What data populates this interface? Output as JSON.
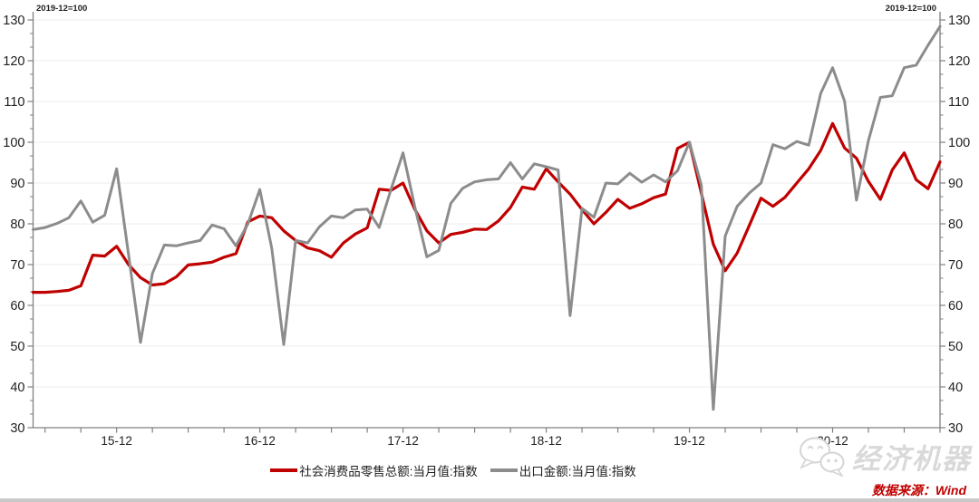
{
  "header": {
    "index_note_left": "2019-12=100",
    "index_note_right": "2019-12=100"
  },
  "chart_data": {
    "type": "line",
    "title": "",
    "xlabel": "",
    "ylabel": "",
    "ylim": [
      30,
      130
    ],
    "y_tick_step": 10,
    "grid": "horizontal",
    "legend_position": "bottom",
    "x_tick_labels": [
      "15-12",
      "16-12",
      "17-12",
      "18-12",
      "19-12",
      "20-12"
    ],
    "x": [
      "15-05",
      "15-06",
      "15-07",
      "15-08",
      "15-09",
      "15-10",
      "15-11",
      "15-12",
      "16-01",
      "16-02",
      "16-03",
      "16-04",
      "16-05",
      "16-06",
      "16-07",
      "16-08",
      "16-09",
      "16-10",
      "16-11",
      "16-12",
      "17-01",
      "17-02",
      "17-03",
      "17-04",
      "17-05",
      "17-06",
      "17-07",
      "17-08",
      "17-09",
      "17-10",
      "17-11",
      "17-12",
      "18-01",
      "18-02",
      "18-03",
      "18-04",
      "18-05",
      "18-06",
      "18-07",
      "18-08",
      "18-09",
      "18-10",
      "18-11",
      "18-12",
      "19-01",
      "19-02",
      "19-03",
      "19-04",
      "19-05",
      "19-06",
      "19-07",
      "19-08",
      "19-09",
      "19-10",
      "19-11",
      "19-12",
      "20-01",
      "20-02",
      "20-03",
      "20-04",
      "20-05",
      "20-06",
      "20-07",
      "20-08",
      "20-09",
      "20-10",
      "20-11",
      "20-12",
      "21-01",
      "21-02",
      "21-03",
      "21-04",
      "21-05",
      "21-06",
      "21-07",
      "21-08",
      "21-09"
    ],
    "series": [
      {
        "name": "社会消费品零售总额:当月值:指数",
        "color": "#c00000",
        "values": [
          63.2,
          63.2,
          63.4,
          63.7,
          64.8,
          72.3,
          72.1,
          74.5,
          70.0,
          66.8,
          65.0,
          65.3,
          67.0,
          69.9,
          70.2,
          70.6,
          71.8,
          72.7,
          80.5,
          81.9,
          81.5,
          78.3,
          75.9,
          74.1,
          73.4,
          71.8,
          75.3,
          77.5,
          79.0,
          88.5,
          88.2,
          90.0,
          83.5,
          78.3,
          75.3,
          77.4,
          77.9,
          78.7,
          78.6,
          80.7,
          84.0,
          89.0,
          88.5,
          93.5,
          90.3,
          87.3,
          83.5,
          80.0,
          82.8,
          86.0,
          83.8,
          84.9,
          86.4,
          87.3,
          98.5,
          100.0,
          87.5,
          75.0,
          68.5,
          72.8,
          79.5,
          86.3,
          84.3,
          86.5,
          90.0,
          93.5,
          98.0,
          104.6,
          98.6,
          96.1,
          90.4,
          86.0,
          93.2,
          97.4,
          90.8,
          88.6,
          95.2
        ]
      },
      {
        "name": "出口金额:当月值:指数",
        "color": "#8c8c8c",
        "values": [
          78.6,
          79.1,
          80.1,
          81.5,
          85.6,
          80.4,
          82.1,
          93.5,
          72.5,
          50.9,
          67.8,
          74.8,
          74.6,
          75.3,
          75.9,
          79.7,
          78.8,
          74.6,
          80.0,
          88.4,
          74.0,
          50.4,
          75.9,
          75.3,
          79.3,
          81.9,
          81.5,
          83.4,
          83.6,
          79.1,
          88.5,
          97.4,
          84.0,
          71.9,
          73.5,
          85.0,
          88.7,
          90.3,
          90.8,
          91.0,
          95.0,
          91.0,
          94.7,
          94.0,
          93.2,
          57.5,
          83.8,
          81.6,
          90.0,
          89.8,
          92.4,
          90.2,
          92.0,
          90.3,
          93.0,
          100.0,
          89.5,
          34.5,
          77.0,
          84.3,
          87.5,
          90.0,
          99.4,
          98.4,
          100.2,
          99.3,
          112.0,
          118.3,
          110.1,
          85.8,
          100.4,
          111.0,
          111.4,
          118.3,
          118.9,
          123.8,
          128.4
        ]
      }
    ]
  },
  "watermark": {
    "brand": "经济机器",
    "logo": "wechat-bubbles-icon"
  },
  "footer": {
    "source": "数据来源：Wind"
  }
}
